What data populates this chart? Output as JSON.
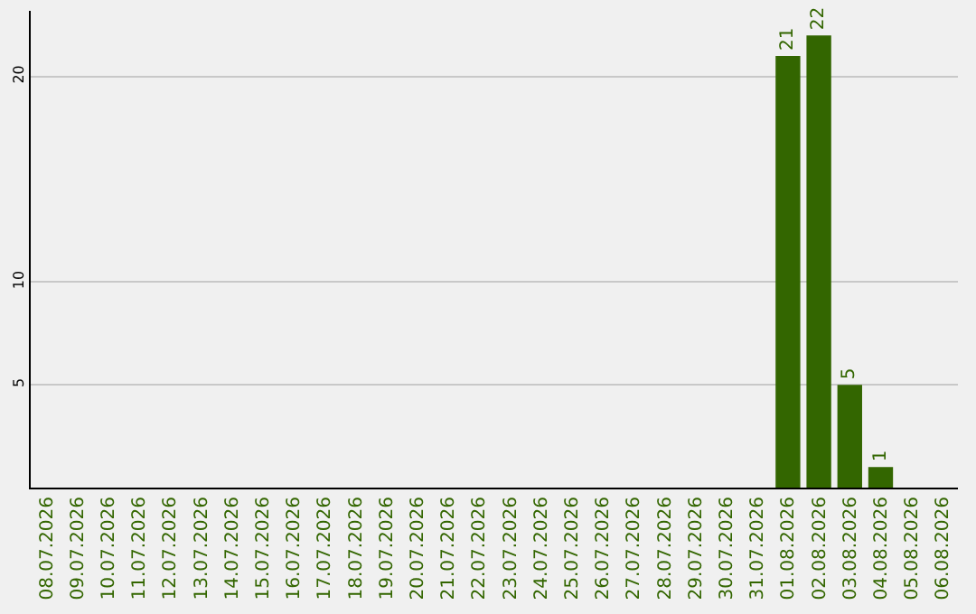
{
  "chart_data": {
    "type": "bar",
    "categories": [
      "08.07.2026",
      "09.07.2026",
      "10.07.2026",
      "11.07.2026",
      "12.07.2026",
      "13.07.2026",
      "14.07.2026",
      "15.07.2026",
      "16.07.2026",
      "17.07.2026",
      "18.07.2026",
      "19.07.2026",
      "20.07.2026",
      "21.07.2026",
      "22.07.2026",
      "23.07.2026",
      "24.07.2026",
      "25.07.2026",
      "26.07.2026",
      "27.07.2026",
      "28.07.2026",
      "29.07.2026",
      "30.07.2026",
      "31.07.2026",
      "01.08.2026",
      "02.08.2026",
      "03.08.2026",
      "04.08.2026",
      "05.08.2026",
      "06.08.2026"
    ],
    "values": [
      0,
      0,
      0,
      0,
      0,
      0,
      0,
      0,
      0,
      0,
      0,
      0,
      0,
      0,
      0,
      0,
      0,
      0,
      0,
      0,
      0,
      0,
      0,
      0,
      21,
      22,
      5,
      1,
      0,
      0
    ],
    "value_labels": [
      null,
      null,
      null,
      null,
      null,
      null,
      null,
      null,
      null,
      null,
      null,
      null,
      null,
      null,
      null,
      null,
      null,
      null,
      null,
      null,
      null,
      null,
      null,
      null,
      "21",
      "22",
      "5",
      "1",
      null,
      null
    ],
    "color": "#336600",
    "ylim": [
      0,
      23.2
    ],
    "yticks": [
      5,
      10,
      20
    ],
    "grid": "y",
    "legend": false
  }
}
